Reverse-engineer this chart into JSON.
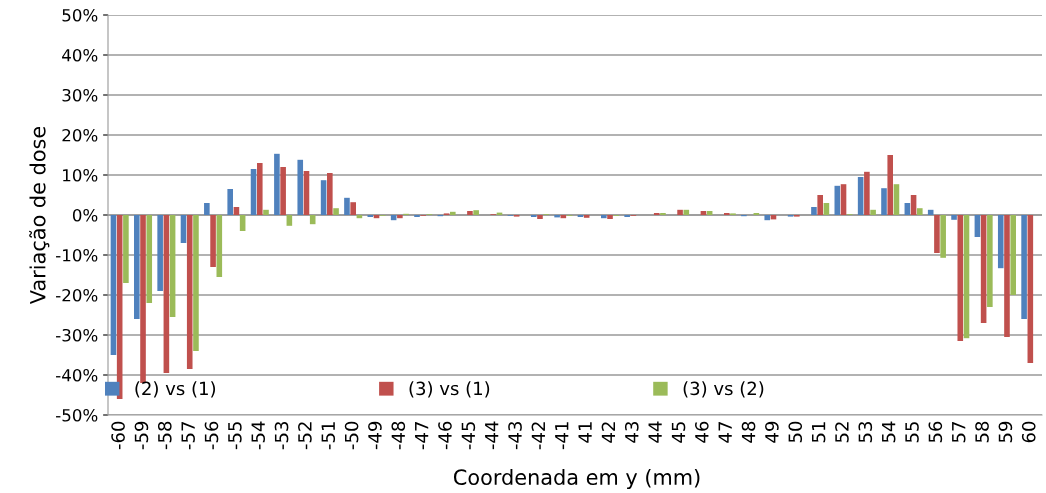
{
  "chart_data": {
    "type": "bar",
    "xlabel": "Coordenada em y (mm)",
    "ylabel": "Variação de dose",
    "categories": [
      "-60",
      "-59",
      "-58",
      "-57",
      "-56",
      "-55",
      "-54",
      "-53",
      "-52",
      "-51",
      "-50",
      "-49",
      "-48",
      "-47",
      "-46",
      "-45",
      "-44",
      "-43",
      "-42",
      "-41",
      "41",
      "42",
      "43",
      "44",
      "45",
      "46",
      "47",
      "48",
      "49",
      "50",
      "51",
      "52",
      "53",
      "54",
      "55",
      "56",
      "57",
      "58",
      "59",
      "60"
    ],
    "series": [
      {
        "name": "(2) vs (1)",
        "color": "#4f81bd",
        "values": [
          -35,
          -26,
          -19,
          -7,
          3,
          6.5,
          11.5,
          15.3,
          13.8,
          8.7,
          4.3,
          -0.5,
          -1.3,
          -0.5,
          -0.3,
          null,
          0,
          -0.2,
          -0.5,
          -0.6,
          -0.5,
          -0.8,
          -0.5,
          0,
          0,
          0,
          0,
          -0.3,
          -1.3,
          -0.4,
          2,
          7.3,
          9.5,
          6.7,
          3,
          1.3,
          -1.2,
          -5.5,
          -13.3,
          -26
        ]
      },
      {
        "name": "(3) vs (1)",
        "color": "#c0504d",
        "values": [
          -46,
          -42,
          -39.5,
          -38.5,
          -13,
          2,
          13,
          12,
          11,
          10.5,
          3.2,
          -0.8,
          -0.8,
          -0.2,
          0.4,
          1,
          0.2,
          -0.4,
          -1,
          -0.8,
          -0.7,
          -1,
          -0.2,
          0.5,
          1.3,
          1,
          0.5,
          0,
          -1.1,
          -0.4,
          5,
          7.7,
          10.8,
          15,
          5,
          -9.5,
          -31.5,
          -27,
          -30.5,
          -37
        ]
      },
      {
        "name": "(3) vs (2)",
        "color": "#9bbb59",
        "values": [
          -17,
          -22,
          -25.5,
          -34,
          -15.5,
          -4,
          1.3,
          -2.7,
          -2.3,
          1.7,
          -0.8,
          -0.2,
          0.3,
          0.2,
          0.8,
          1.2,
          0.6,
          0,
          0.2,
          -0.2,
          0,
          -0.2,
          0,
          0.5,
          1.3,
          1,
          0.4,
          0.5,
          0,
          0,
          3,
          0.2,
          1.3,
          7.7,
          1.7,
          -10.7,
          -30.8,
          -23,
          -20,
          null
        ]
      }
    ],
    "ylim": [
      -50,
      50
    ],
    "yticks": [
      {
        "value": -50,
        "label": "-50%"
      },
      {
        "value": -40,
        "label": "-40%"
      },
      {
        "value": -30,
        "label": "-30%"
      },
      {
        "value": -20,
        "label": "-20%"
      },
      {
        "value": -10,
        "label": "-10%"
      },
      {
        "value": 0,
        "label": "0%"
      },
      {
        "value": 10,
        "label": "10%"
      },
      {
        "value": 20,
        "label": "20%"
      },
      {
        "value": 30,
        "label": "30%"
      },
      {
        "value": 40,
        "label": "40%"
      },
      {
        "value": 50,
        "label": "50%"
      }
    ],
    "grid": "y",
    "legend": "bottom"
  }
}
